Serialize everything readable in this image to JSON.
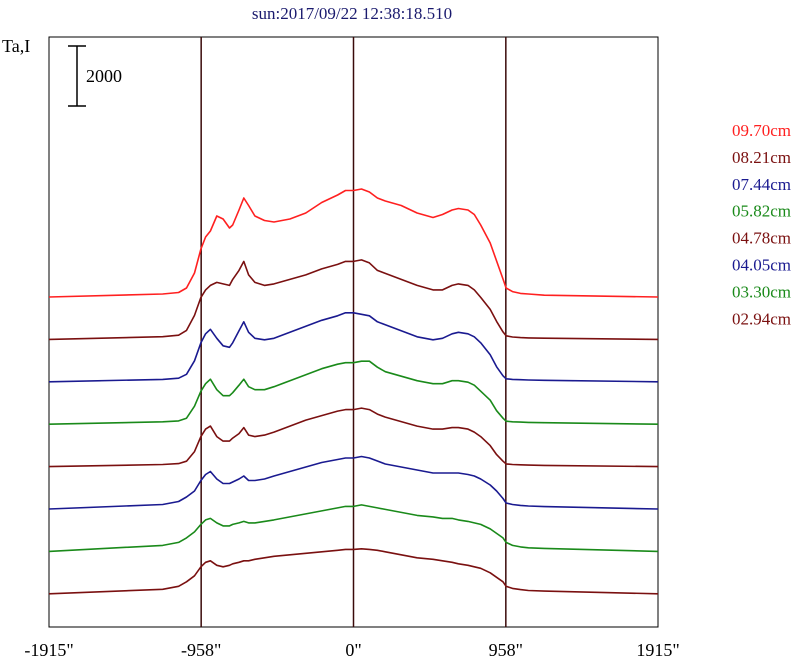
{
  "chart_data": {
    "type": "line",
    "title": "sun:2017/09/22 12:38:18.510",
    "ylabel": "Ta,I",
    "scale_bar_label": "2000",
    "scale_bar_value": 2000,
    "x_ticks": [
      {
        "value": -1915,
        "label": "-1915\""
      },
      {
        "value": -958,
        "label": "-958\""
      },
      {
        "value": 0,
        "label": "0\""
      },
      {
        "value": 958,
        "label": "958\""
      },
      {
        "value": 1915,
        "label": "1915\""
      }
    ],
    "xlim": [
      -1915,
      1915
    ],
    "vertical_lines": [
      -958,
      0,
      958
    ],
    "grid": false,
    "legend_position": "right",
    "series": [
      {
        "name": "09.70cm",
        "color": "#ff2020",
        "x": [
          -1915,
          -1200,
          -1100,
          -1050,
          -1000,
          -960,
          -930,
          -900,
          -860,
          -820,
          -780,
          -760,
          -720,
          -690,
          -660,
          -620,
          -560,
          -500,
          -400,
          -300,
          -200,
          -100,
          -50,
          0,
          50,
          100,
          150,
          200,
          300,
          400,
          500,
          560,
          620,
          660,
          720,
          760,
          800,
          860,
          900,
          940,
          960,
          1000,
          1050,
          1100,
          1200,
          1915
        ],
        "y": [
          0,
          100,
          150,
          300,
          800,
          1600,
          2000,
          2200,
          2700,
          2600,
          2300,
          2400,
          2900,
          3300,
          3050,
          2700,
          2550,
          2500,
          2600,
          2800,
          3150,
          3400,
          3550,
          3550,
          3600,
          3500,
          3300,
          3200,
          3050,
          2800,
          2650,
          2750,
          2900,
          2950,
          2900,
          2750,
          2400,
          1800,
          1200,
          600,
          300,
          180,
          120,
          100,
          60,
          0
        ]
      },
      {
        "name": "08.21cm",
        "color": "#7a1010",
        "x": [
          -1915,
          -1200,
          -1100,
          -1050,
          -1000,
          -960,
          -930,
          -900,
          -860,
          -820,
          -780,
          -760,
          -720,
          -690,
          -660,
          -620,
          -560,
          -500,
          -400,
          -300,
          -200,
          -100,
          -50,
          0,
          50,
          100,
          150,
          200,
          300,
          400,
          500,
          560,
          620,
          660,
          720,
          760,
          800,
          860,
          900,
          940,
          960,
          1000,
          1050,
          1100,
          1200,
          1915
        ],
        "y": [
          0,
          90,
          140,
          300,
          800,
          1400,
          1650,
          1800,
          1900,
          1850,
          1800,
          2000,
          2300,
          2600,
          2150,
          1900,
          1800,
          1850,
          2000,
          2150,
          2350,
          2500,
          2600,
          2600,
          2650,
          2550,
          2300,
          2200,
          2000,
          1800,
          1650,
          1650,
          1800,
          1850,
          1800,
          1650,
          1400,
          1000,
          600,
          250,
          120,
          80,
          60,
          50,
          40,
          0
        ]
      },
      {
        "name": "07.44cm",
        "color": "#1a1a90",
        "x": [
          -1915,
          -1200,
          -1100,
          -1050,
          -1000,
          -960,
          -930,
          -900,
          -860,
          -820,
          -780,
          -760,
          -720,
          -690,
          -660,
          -620,
          -560,
          -500,
          -400,
          -300,
          -200,
          -100,
          -50,
          0,
          50,
          100,
          150,
          200,
          300,
          400,
          500,
          560,
          620,
          660,
          720,
          760,
          800,
          860,
          900,
          940,
          960,
          1000,
          1050,
          1100,
          1200,
          1915
        ],
        "y": [
          0,
          80,
          120,
          250,
          700,
          1300,
          1600,
          1750,
          1450,
          1200,
          1150,
          1300,
          1700,
          2000,
          1650,
          1450,
          1400,
          1450,
          1650,
          1850,
          2050,
          2200,
          2300,
          2300,
          2250,
          2200,
          2000,
          1900,
          1700,
          1500,
          1400,
          1450,
          1600,
          1650,
          1600,
          1500,
          1300,
          900,
          500,
          200,
          100,
          80,
          70,
          60,
          50,
          0
        ]
      },
      {
        "name": "05.82cm",
        "color": "#1a8a1a",
        "x": [
          -1915,
          -1200,
          -1100,
          -1050,
          -1000,
          -960,
          -930,
          -900,
          -860,
          -820,
          -780,
          -760,
          -720,
          -690,
          -660,
          -620,
          -560,
          -500,
          -400,
          -300,
          -200,
          -100,
          -50,
          0,
          50,
          100,
          150,
          200,
          300,
          400,
          500,
          560,
          620,
          660,
          720,
          760,
          800,
          860,
          900,
          940,
          960,
          1000,
          1050,
          1100,
          1200,
          1915
        ],
        "y": [
          0,
          80,
          110,
          200,
          600,
          1100,
          1350,
          1500,
          1150,
          950,
          950,
          1050,
          1300,
          1500,
          1250,
          1150,
          1150,
          1250,
          1450,
          1650,
          1850,
          2000,
          2050,
          2050,
          2100,
          2100,
          1900,
          1750,
          1600,
          1450,
          1350,
          1350,
          1450,
          1450,
          1400,
          1300,
          1100,
          800,
          450,
          200,
          100,
          80,
          70,
          60,
          50,
          0
        ]
      },
      {
        "name": "04.78cm",
        "color": "#7a1010",
        "x": [
          -1915,
          -1200,
          -1100,
          -1050,
          -1000,
          -960,
          -930,
          -900,
          -860,
          -820,
          -780,
          -760,
          -720,
          -690,
          -660,
          -620,
          -560,
          -500,
          -400,
          -300,
          -200,
          -100,
          -50,
          0,
          50,
          100,
          150,
          200,
          300,
          400,
          500,
          560,
          620,
          660,
          720,
          760,
          800,
          860,
          900,
          940,
          960,
          1000,
          1050,
          1100,
          1200,
          1915
        ],
        "y": [
          0,
          70,
          100,
          180,
          500,
          1000,
          1250,
          1350,
          1000,
          850,
          850,
          950,
          1100,
          1300,
          1050,
          1000,
          1050,
          1150,
          1350,
          1550,
          1700,
          1850,
          1900,
          1900,
          1950,
          1900,
          1750,
          1650,
          1500,
          1350,
          1250,
          1250,
          1300,
          1300,
          1250,
          1150,
          1000,
          700,
          400,
          180,
          90,
          70,
          60,
          50,
          40,
          0
        ]
      },
      {
        "name": "04.05cm",
        "color": "#1a1a90",
        "x": [
          -1915,
          -1200,
          -1100,
          -1050,
          -1000,
          -960,
          -930,
          -900,
          -860,
          -820,
          -780,
          -760,
          -720,
          -690,
          -660,
          -620,
          -560,
          -500,
          -400,
          -300,
          -200,
          -100,
          -50,
          0,
          50,
          100,
          150,
          200,
          300,
          400,
          500,
          560,
          620,
          660,
          720,
          760,
          800,
          860,
          900,
          940,
          960,
          1000,
          1050,
          1100,
          1200,
          1915
        ],
        "y": [
          0,
          150,
          250,
          400,
          600,
          950,
          1150,
          1250,
          1000,
          850,
          850,
          900,
          1000,
          1100,
          950,
          950,
          1000,
          1100,
          1250,
          1400,
          1550,
          1650,
          1700,
          1700,
          1750,
          1700,
          1600,
          1500,
          1400,
          1300,
          1200,
          1200,
          1200,
          1200,
          1150,
          1100,
          1000,
          800,
          600,
          350,
          200,
          150,
          120,
          100,
          80,
          0
        ]
      },
      {
        "name": "03.30cm",
        "color": "#1a8a1a",
        "x": [
          -1915,
          -1200,
          -1100,
          -1050,
          -1000,
          -960,
          -930,
          -900,
          -860,
          -820,
          -780,
          -760,
          -720,
          -690,
          -660,
          -620,
          -560,
          -500,
          -400,
          -300,
          -200,
          -100,
          -50,
          0,
          50,
          100,
          150,
          200,
          300,
          400,
          500,
          560,
          620,
          660,
          720,
          760,
          800,
          860,
          900,
          940,
          960,
          1000,
          1050,
          1100,
          1200,
          1915
        ],
        "y": [
          0,
          200,
          300,
          450,
          650,
          900,
          1050,
          1100,
          950,
          850,
          850,
          900,
          950,
          1000,
          950,
          950,
          1000,
          1050,
          1150,
          1250,
          1350,
          1450,
          1500,
          1500,
          1550,
          1500,
          1450,
          1400,
          1300,
          1200,
          1150,
          1100,
          1100,
          1050,
          1000,
          950,
          900,
          750,
          600,
          450,
          300,
          200,
          150,
          120,
          100,
          0
        ]
      },
      {
        "name": "02.94cm",
        "color": "#7a1010",
        "x": [
          -1915,
          -1200,
          -1100,
          -1050,
          -1000,
          -960,
          -930,
          -900,
          -860,
          -820,
          -780,
          -760,
          -720,
          -690,
          -660,
          -620,
          -560,
          -500,
          -400,
          -300,
          -200,
          -100,
          -50,
          0,
          50,
          100,
          150,
          200,
          300,
          400,
          500,
          560,
          620,
          660,
          720,
          760,
          800,
          860,
          900,
          940,
          960,
          1000,
          1050,
          1100,
          1200,
          1915
        ],
        "y": [
          0,
          150,
          250,
          400,
          600,
          900,
          1050,
          1100,
          950,
          900,
          950,
          1000,
          1050,
          1100,
          1100,
          1150,
          1200,
          1250,
          1300,
          1350,
          1400,
          1450,
          1480,
          1480,
          1500,
          1480,
          1450,
          1400,
          1300,
          1200,
          1150,
          1100,
          1050,
          1000,
          950,
          900,
          850,
          700,
          550,
          400,
          250,
          180,
          140,
          110,
          90,
          0
        ]
      }
    ]
  }
}
